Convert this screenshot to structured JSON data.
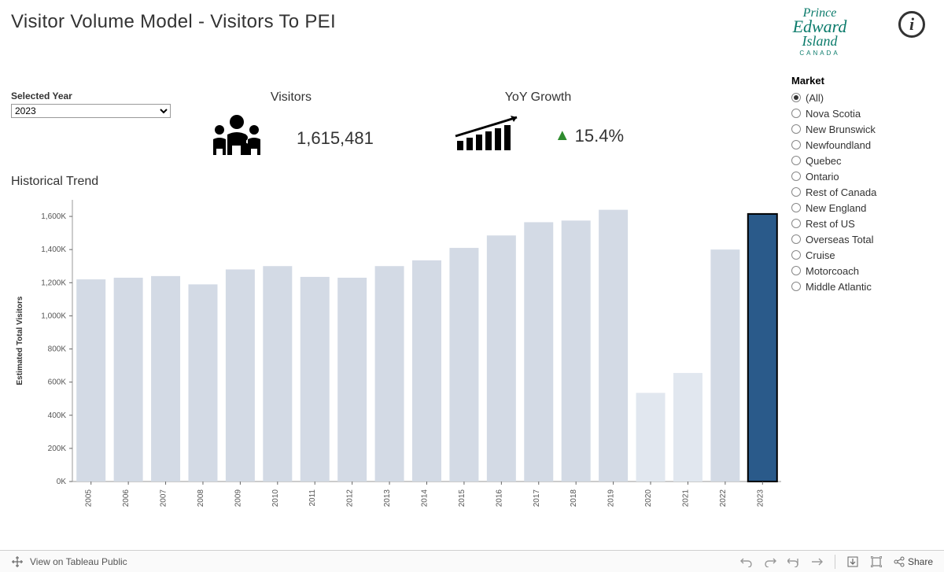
{
  "title": "Visitor Volume Model - Visitors To PEI",
  "logo": {
    "line1": "Prince",
    "line2": "Edward",
    "line3": "Island",
    "sub": "CANADA",
    "color": "#0b7b6b"
  },
  "selected_year": {
    "label": "Selected Year",
    "value": "2023"
  },
  "metrics": {
    "visitors": {
      "label": "Visitors",
      "value": "1,615,481"
    },
    "yoy": {
      "label": "YoY Growth",
      "value": "15.4%",
      "direction": "up",
      "arrow_color": "#2e8b2e"
    }
  },
  "market": {
    "title": "Market",
    "selected": "(All)",
    "options": [
      "(All)",
      "Nova Scotia",
      "New Brunswick",
      "Newfoundland",
      "Quebec",
      "Ontario",
      "Rest of Canada",
      "New England",
      "Rest of US",
      "Overseas Total",
      "Cruise",
      "Motorcoach",
      "Middle Atlantic"
    ]
  },
  "chart": {
    "type": "bar",
    "title": "Historical Trend",
    "ylabel": "Estimated Total Visitors",
    "label_fontsize": 10,
    "tick_fontsize": 10,
    "categories": [
      "2005",
      "2006",
      "2007",
      "2008",
      "2009",
      "2010",
      "2011",
      "2012",
      "2013",
      "2014",
      "2015",
      "2016",
      "2017",
      "2018",
      "2019",
      "2020",
      "2021",
      "2022",
      "2023"
    ],
    "values": [
      1220,
      1230,
      1240,
      1190,
      1280,
      1300,
      1235,
      1230,
      1300,
      1335,
      1410,
      1485,
      1565,
      1575,
      1640,
      535,
      655,
      1400,
      1615
    ],
    "bar_color": "#d3dae5",
    "bar_color_lighter": "#e1e7ef",
    "highlight_index": 18,
    "highlight_fill": "#2a5a8a",
    "highlight_stroke": "#000000",
    "highlight_stroke_width": 2,
    "ytick_step": 200,
    "ylim": [
      0,
      1700
    ],
    "ytick_labels": [
      "0K",
      "200K",
      "400K",
      "600K",
      "800K",
      "1,000K",
      "1,200K",
      "1,400K",
      "1,600K"
    ],
    "ytick_values": [
      0,
      200,
      400,
      600,
      800,
      1000,
      1200,
      1400,
      1600
    ],
    "axis_color": "#999999",
    "tick_color": "#666666",
    "grid_color": "#e8e8e8",
    "background_color": "#ffffff",
    "bar_width_ratio": 0.78
  },
  "footer": {
    "view_on": "View on Tableau Public",
    "share": "Share"
  }
}
